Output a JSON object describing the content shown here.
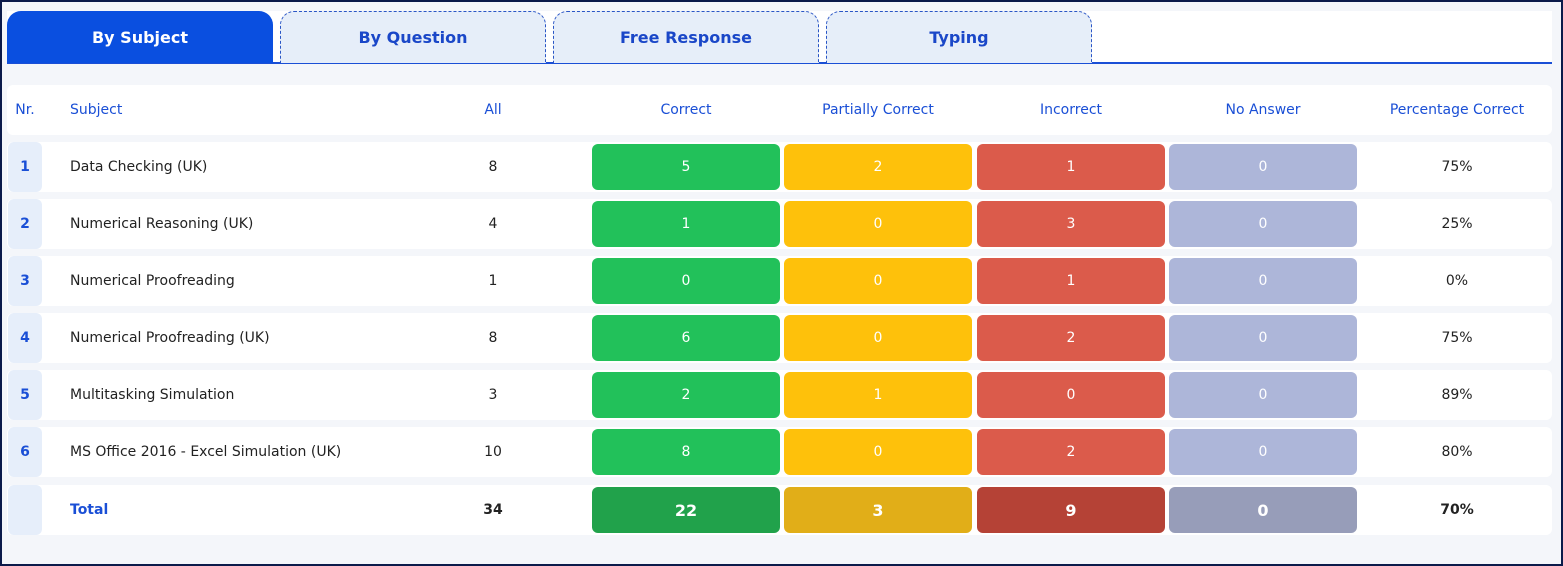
{
  "tabs": [
    {
      "label": "By Subject",
      "active": true
    },
    {
      "label": "By Question",
      "active": false
    },
    {
      "label": "Free Response",
      "active": false
    },
    {
      "label": "Typing",
      "active": false
    }
  ],
  "headers": {
    "nr": "Nr.",
    "subject": "Subject",
    "all": "All",
    "correct": "Correct",
    "partial": "Partially Correct",
    "incorrect": "Incorrect",
    "no_answer": "No Answer",
    "percentage": "Percentage Correct"
  },
  "rows": [
    {
      "nr": "1",
      "subject": "Data Checking (UK)",
      "all": "8",
      "correct": "5",
      "partial": "2",
      "incorrect": "1",
      "no_answer": "0",
      "percentage": "75%"
    },
    {
      "nr": "2",
      "subject": "Numerical Reasoning (UK)",
      "all": "4",
      "correct": "1",
      "partial": "0",
      "incorrect": "3",
      "no_answer": "0",
      "percentage": "25%"
    },
    {
      "nr": "3",
      "subject": "Numerical Proofreading",
      "all": "1",
      "correct": "0",
      "partial": "0",
      "incorrect": "1",
      "no_answer": "0",
      "percentage": "0%"
    },
    {
      "nr": "4",
      "subject": "Numerical Proofreading (UK)",
      "all": "8",
      "correct": "6",
      "partial": "0",
      "incorrect": "2",
      "no_answer": "0",
      "percentage": "75%"
    },
    {
      "nr": "5",
      "subject": "Multitasking Simulation",
      "all": "3",
      "correct": "2",
      "partial": "1",
      "incorrect": "0",
      "no_answer": "0",
      "percentage": "89%"
    },
    {
      "nr": "6",
      "subject": "MS Office 2016 - Excel Simulation (UK)",
      "all": "10",
      "correct": "8",
      "partial": "0",
      "incorrect": "2",
      "no_answer": "0",
      "percentage": "80%"
    }
  ],
  "total": {
    "label": "Total",
    "all": "34",
    "correct": "22",
    "partial": "3",
    "incorrect": "9",
    "no_answer": "0",
    "percentage": "70%"
  },
  "colors": {
    "accent": "#0a4fe0",
    "correct": "#22c15a",
    "partial": "#fec10b",
    "incorrect": "#db5b4b",
    "no_answer": "#adb6d9"
  }
}
